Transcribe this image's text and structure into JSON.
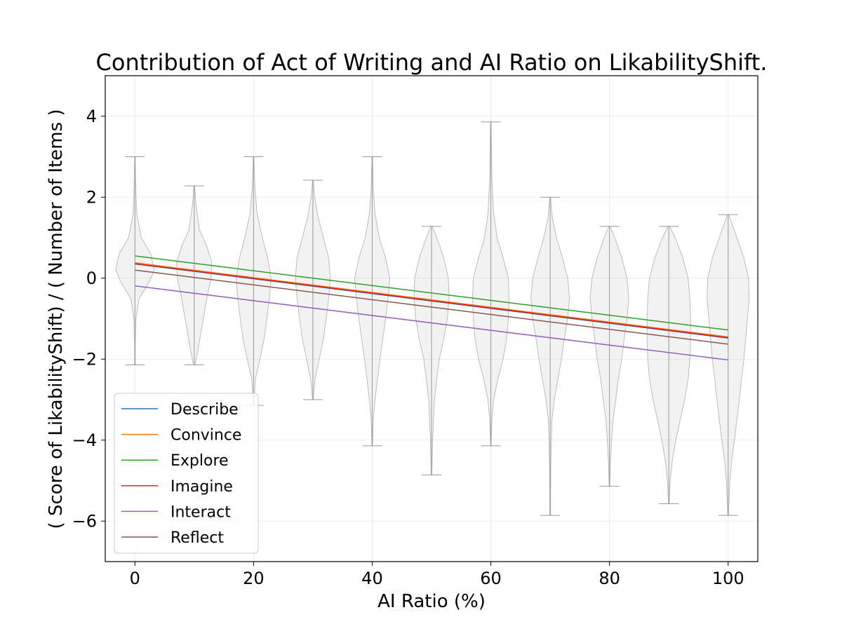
{
  "chart_data": {
    "type": "violin",
    "title": "Contribution of Act of Writing and AI Ratio on LikabilityShift.",
    "xlabel": "AI Ratio (%)",
    "ylabel": "( Score of LikabilityShift) / ( Number of Items )",
    "xlim": [
      -5,
      105
    ],
    "ylim": [
      -7,
      5
    ],
    "xticks": [
      0,
      20,
      40,
      60,
      80,
      100
    ],
    "yticks": [
      -6,
      -4,
      -2,
      0,
      2,
      4
    ],
    "grid": true,
    "legend_position": "lower-left",
    "violins": [
      {
        "x": 0,
        "min": -2.14,
        "max": 3.0,
        "profile": [
          [
            -2.14,
            0.01
          ],
          [
            -1.6,
            0.012
          ],
          [
            -1.0,
            0.03
          ],
          [
            -0.5,
            0.12
          ],
          [
            -0.1,
            0.4
          ],
          [
            0.2,
            0.55
          ],
          [
            0.6,
            0.45
          ],
          [
            1.0,
            0.18
          ],
          [
            1.6,
            0.05
          ],
          [
            2.4,
            0.02
          ],
          [
            3.0,
            0.01
          ]
        ]
      },
      {
        "x": 10,
        "min": -2.14,
        "max": 2.28,
        "profile": [
          [
            -2.14,
            0.02
          ],
          [
            -1.8,
            0.1
          ],
          [
            -1.3,
            0.2
          ],
          [
            -0.8,
            0.3
          ],
          [
            -0.4,
            0.38
          ],
          [
            0.0,
            0.48
          ],
          [
            0.4,
            0.5
          ],
          [
            0.8,
            0.35
          ],
          [
            1.2,
            0.15
          ],
          [
            1.8,
            0.05
          ],
          [
            2.28,
            0.01
          ]
        ]
      },
      {
        "x": 20,
        "min": -3.14,
        "max": 3.0,
        "profile": [
          [
            -3.14,
            0.01
          ],
          [
            -2.5,
            0.05
          ],
          [
            -2.0,
            0.18
          ],
          [
            -1.5,
            0.3
          ],
          [
            -1.0,
            0.38
          ],
          [
            -0.5,
            0.45
          ],
          [
            0.0,
            0.5
          ],
          [
            0.5,
            0.4
          ],
          [
            1.0,
            0.25
          ],
          [
            1.6,
            0.1
          ],
          [
            2.2,
            0.04
          ],
          [
            3.0,
            0.01
          ]
        ]
      },
      {
        "x": 30,
        "min": -3.0,
        "max": 2.42,
        "profile": [
          [
            -3.0,
            0.01
          ],
          [
            -2.5,
            0.06
          ],
          [
            -2.0,
            0.18
          ],
          [
            -1.5,
            0.3
          ],
          [
            -1.0,
            0.38
          ],
          [
            -0.5,
            0.45
          ],
          [
            0.0,
            0.5
          ],
          [
            0.5,
            0.45
          ],
          [
            1.0,
            0.3
          ],
          [
            1.5,
            0.15
          ],
          [
            2.0,
            0.05
          ],
          [
            2.42,
            0.01
          ]
        ]
      },
      {
        "x": 40,
        "min": -4.14,
        "max": 3.0,
        "profile": [
          [
            -4.14,
            0.01
          ],
          [
            -3.5,
            0.03
          ],
          [
            -3.0,
            0.08
          ],
          [
            -2.5,
            0.15
          ],
          [
            -2.0,
            0.22
          ],
          [
            -1.5,
            0.3
          ],
          [
            -1.0,
            0.38
          ],
          [
            -0.5,
            0.45
          ],
          [
            0.0,
            0.5
          ],
          [
            0.5,
            0.38
          ],
          [
            1.0,
            0.2
          ],
          [
            1.6,
            0.08
          ],
          [
            2.2,
            0.03
          ],
          [
            3.0,
            0.01
          ]
        ]
      },
      {
        "x": 50,
        "min": -4.86,
        "max": 1.28,
        "profile": [
          [
            -4.86,
            0.01
          ],
          [
            -4.0,
            0.03
          ],
          [
            -3.0,
            0.08
          ],
          [
            -2.5,
            0.15
          ],
          [
            -2.0,
            0.22
          ],
          [
            -1.5,
            0.35
          ],
          [
            -1.0,
            0.45
          ],
          [
            -0.5,
            0.5
          ],
          [
            0.0,
            0.48
          ],
          [
            0.5,
            0.35
          ],
          [
            1.0,
            0.15
          ],
          [
            1.28,
            0.02
          ]
        ]
      },
      {
        "x": 60,
        "min": -4.14,
        "max": 3.86,
        "profile": [
          [
            -4.14,
            0.01
          ],
          [
            -3.5,
            0.03
          ],
          [
            -3.0,
            0.08
          ],
          [
            -2.5,
            0.2
          ],
          [
            -2.0,
            0.35
          ],
          [
            -1.5,
            0.45
          ],
          [
            -1.0,
            0.5
          ],
          [
            -0.5,
            0.52
          ],
          [
            0.0,
            0.5
          ],
          [
            0.5,
            0.35
          ],
          [
            1.0,
            0.18
          ],
          [
            1.6,
            0.08
          ],
          [
            2.5,
            0.03
          ],
          [
            3.86,
            0.01
          ]
        ]
      },
      {
        "x": 70,
        "min": -5.86,
        "max": 2.0,
        "profile": [
          [
            -5.86,
            0.01
          ],
          [
            -4.5,
            0.02
          ],
          [
            -3.5,
            0.05
          ],
          [
            -3.0,
            0.12
          ],
          [
            -2.5,
            0.22
          ],
          [
            -2.0,
            0.32
          ],
          [
            -1.5,
            0.4
          ],
          [
            -1.0,
            0.5
          ],
          [
            -0.5,
            0.55
          ],
          [
            0.0,
            0.5
          ],
          [
            0.5,
            0.35
          ],
          [
            1.0,
            0.18
          ],
          [
            1.5,
            0.06
          ],
          [
            2.0,
            0.01
          ]
        ]
      },
      {
        "x": 80,
        "min": -5.14,
        "max": 1.28,
        "profile": [
          [
            -5.14,
            0.01
          ],
          [
            -4.5,
            0.03
          ],
          [
            -4.0,
            0.06
          ],
          [
            -3.5,
            0.1
          ],
          [
            -3.0,
            0.18
          ],
          [
            -2.5,
            0.25
          ],
          [
            -2.0,
            0.35
          ],
          [
            -1.5,
            0.42
          ],
          [
            -1.0,
            0.5
          ],
          [
            -0.5,
            0.55
          ],
          [
            0.0,
            0.5
          ],
          [
            0.5,
            0.35
          ],
          [
            1.0,
            0.15
          ],
          [
            1.28,
            0.02
          ]
        ]
      },
      {
        "x": 90,
        "min": -5.57,
        "max": 1.28,
        "profile": [
          [
            -5.57,
            0.01
          ],
          [
            -5.0,
            0.04
          ],
          [
            -4.5,
            0.1
          ],
          [
            -4.0,
            0.2
          ],
          [
            -3.5,
            0.32
          ],
          [
            -3.0,
            0.45
          ],
          [
            -2.5,
            0.55
          ],
          [
            -2.0,
            0.6
          ],
          [
            -1.5,
            0.62
          ],
          [
            -1.0,
            0.62
          ],
          [
            -0.5,
            0.6
          ],
          [
            0.0,
            0.55
          ],
          [
            0.5,
            0.4
          ],
          [
            1.0,
            0.18
          ],
          [
            1.28,
            0.02
          ]
        ]
      },
      {
        "x": 100,
        "min": -5.86,
        "max": 1.57,
        "profile": [
          [
            -5.86,
            0.01
          ],
          [
            -5.0,
            0.05
          ],
          [
            -4.5,
            0.1
          ],
          [
            -4.0,
            0.18
          ],
          [
            -3.5,
            0.25
          ],
          [
            -3.0,
            0.32
          ],
          [
            -2.5,
            0.38
          ],
          [
            -2.0,
            0.45
          ],
          [
            -1.5,
            0.5
          ],
          [
            -1.0,
            0.55
          ],
          [
            -0.5,
            0.6
          ],
          [
            0.0,
            0.58
          ],
          [
            0.5,
            0.45
          ],
          [
            1.0,
            0.25
          ],
          [
            1.57,
            0.02
          ]
        ]
      }
    ],
    "series": [
      {
        "name": "Describe",
        "color": "#1f77b4",
        "x": [
          0,
          100
        ],
        "y": [
          0.35,
          -1.48
        ]
      },
      {
        "name": "Convince",
        "color": "#ff7f0e",
        "x": [
          0,
          100
        ],
        "y": [
          0.38,
          -1.45
        ]
      },
      {
        "name": "Explore",
        "color": "#2ca02c",
        "x": [
          0,
          100
        ],
        "y": [
          0.55,
          -1.28
        ]
      },
      {
        "name": "Imagine",
        "color": "#d62728",
        "x": [
          0,
          100
        ],
        "y": [
          0.36,
          -1.47
        ]
      },
      {
        "name": "Interact",
        "color": "#9467bd",
        "x": [
          0,
          100
        ],
        "y": [
          -0.19,
          -2.02
        ]
      },
      {
        "name": "Reflect",
        "color": "#8c564b",
        "x": [
          0,
          100
        ],
        "y": [
          0.2,
          -1.63
        ]
      }
    ]
  }
}
